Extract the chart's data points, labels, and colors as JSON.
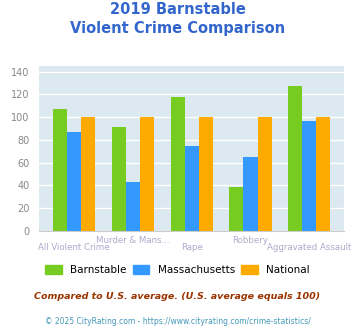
{
  "title_line1": "2019 Barnstable",
  "title_line2": "Violent Crime Comparison",
  "title_color": "#3366cc",
  "categories": [
    "All Violent Crime",
    "Murder & Mans...",
    "Rape",
    "Robbery",
    "Aggravated Assault"
  ],
  "tick_labels_top": [
    "",
    "Murder & Mans...",
    "",
    "Robbery",
    ""
  ],
  "tick_labels_bot": [
    "All Violent Crime",
    "",
    "Rape",
    "",
    "Aggravated Assault"
  ],
  "series": {
    "Barnstable": [
      107,
      91,
      118,
      39,
      127
    ],
    "Massachusetts": [
      87,
      43,
      75,
      65,
      97
    ],
    "National": [
      100,
      100,
      100,
      100,
      100
    ]
  },
  "colors": {
    "Barnstable": "#77cc22",
    "Massachusetts": "#3399ff",
    "National": "#ffaa00"
  },
  "ylim": [
    0,
    145
  ],
  "yticks": [
    0,
    20,
    40,
    60,
    80,
    100,
    120,
    140
  ],
  "background_color": "#dce9f0",
  "grid_color": "#ffffff",
  "xlabel_color": "#aaaacc",
  "ytick_color": "#888888",
  "footnote1": "Compared to U.S. average. (U.S. average equals 100)",
  "footnote2": "© 2025 CityRating.com - https://www.cityrating.com/crime-statistics/",
  "footnote1_color": "#993300",
  "footnote2_color": "#4499bb"
}
